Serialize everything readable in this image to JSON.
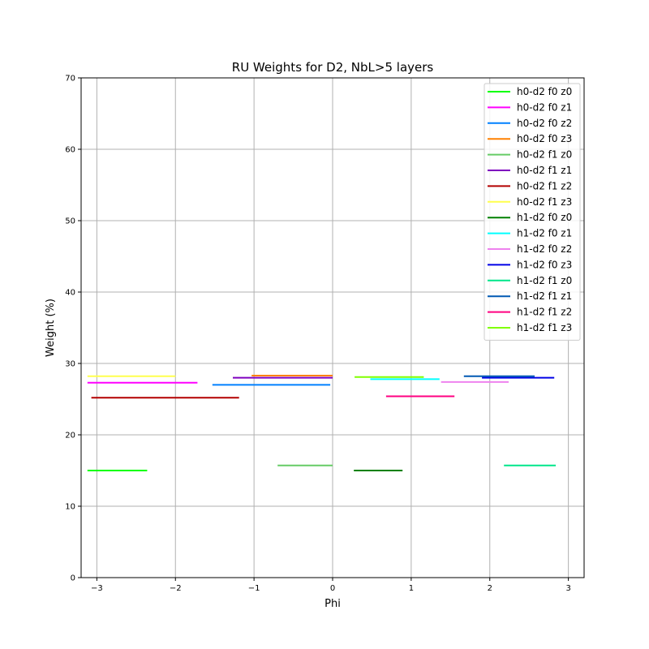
{
  "chart_data": {
    "type": "line",
    "title": "RU Weights for D2, NbL>5 layers",
    "xlabel": "Phi",
    "ylabel": "Weight (%)",
    "xlim": [
      -3.2,
      3.2
    ],
    "ylim": [
      0,
      70
    ],
    "xticks": [
      -3,
      -2,
      -1,
      0,
      1,
      2,
      3
    ],
    "xtick_labels": [
      "−3",
      "−2",
      "−1",
      "0",
      "1",
      "2",
      "3"
    ],
    "yticks": [
      0,
      10,
      20,
      30,
      40,
      50,
      60,
      70
    ],
    "ytick_labels": [
      "0",
      "10",
      "20",
      "30",
      "40",
      "50",
      "60",
      "70"
    ],
    "grid": true,
    "legend_position": "top-right",
    "series": [
      {
        "name": "h0-d2 f0 z0",
        "color": "#00ff00",
        "x": [
          -3.12,
          -2.36
        ],
        "y": [
          15.0,
          15.0
        ]
      },
      {
        "name": "h0-d2 f0 z1",
        "color": "#ff00ff",
        "x": [
          -3.12,
          -1.72
        ],
        "y": [
          27.3,
          27.3
        ]
      },
      {
        "name": "h0-d2 f0 z2",
        "color": "#0080ff",
        "x": [
          -1.53,
          -0.03
        ],
        "y": [
          27.0,
          27.0
        ]
      },
      {
        "name": "h0-d2 f0 z3",
        "color": "#ff8000",
        "x": [
          -1.03,
          0.0
        ],
        "y": [
          28.3,
          28.3
        ]
      },
      {
        "name": "h0-d2 f1 z0",
        "color": "#66cc66",
        "x": [
          -0.7,
          0.0
        ],
        "y": [
          15.7,
          15.7
        ]
      },
      {
        "name": "h0-d2 f1 z1",
        "color": "#7f00bf",
        "x": [
          -1.27,
          0.0
        ],
        "y": [
          28.0,
          28.0
        ]
      },
      {
        "name": "h0-d2 f1 z2",
        "color": "#b30000",
        "x": [
          -3.07,
          -1.19
        ],
        "y": [
          25.2,
          25.2
        ]
      },
      {
        "name": "h0-d2 f1 z3",
        "color": "#ffff4d",
        "x": [
          -3.12,
          -2.0
        ],
        "y": [
          28.2,
          28.2
        ]
      },
      {
        "name": "h1-d2 f0 z0",
        "color": "#008000",
        "x": [
          0.27,
          0.89
        ],
        "y": [
          15.0,
          15.0
        ]
      },
      {
        "name": "h1-d2 f0 z1",
        "color": "#00ffff",
        "x": [
          0.48,
          1.36
        ],
        "y": [
          27.8,
          27.8
        ]
      },
      {
        "name": "h1-d2 f0 z2",
        "color": "#ee82ee",
        "x": [
          1.38,
          2.24
        ],
        "y": [
          27.4,
          27.4
        ]
      },
      {
        "name": "h1-d2 f0 z3",
        "color": "#0000e6",
        "x": [
          1.9,
          2.82
        ],
        "y": [
          28.0,
          28.0
        ]
      },
      {
        "name": "h1-d2 f1 z0",
        "color": "#00e68a",
        "x": [
          2.18,
          2.84
        ],
        "y": [
          15.7,
          15.7
        ]
      },
      {
        "name": "h1-d2 f1 z1",
        "color": "#0059b3",
        "x": [
          1.67,
          2.57
        ],
        "y": [
          28.2,
          28.2
        ]
      },
      {
        "name": "h1-d2 f1 z2",
        "color": "#ff0080",
        "x": [
          0.68,
          1.55
        ],
        "y": [
          25.4,
          25.4
        ]
      },
      {
        "name": "h1-d2 f1 z3",
        "color": "#80ff00",
        "x": [
          0.28,
          1.16
        ],
        "y": [
          28.1,
          28.1
        ]
      }
    ]
  }
}
